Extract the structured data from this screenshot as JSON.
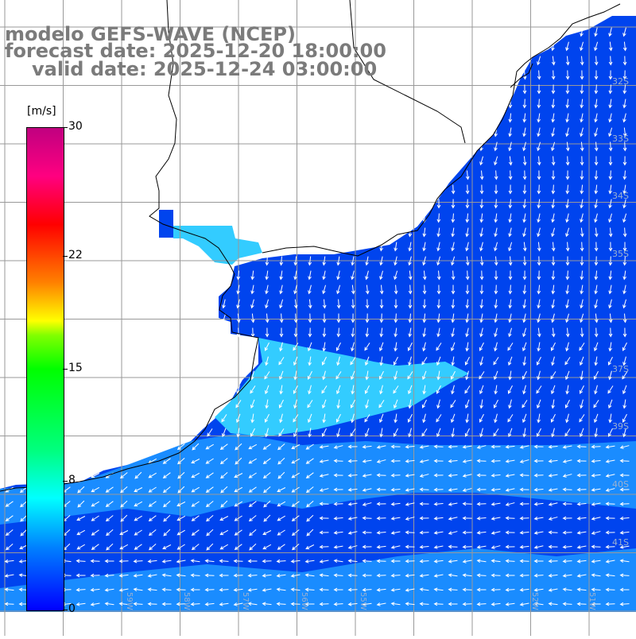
{
  "title": {
    "line1": "modelo GEFS-WAVE (NCEP)",
    "line2": "forecast date: 2025-12-20 18:00:00",
    "line3": "valid date: 2025-12-24 03:00:00"
  },
  "legend": {
    "unit": "[m/s]",
    "ticks": [
      "30",
      "22",
      "15",
      "8",
      "0"
    ],
    "tick_values": [
      30,
      22,
      15,
      8,
      0
    ],
    "max_value": 30,
    "colors": [
      "#0000ff",
      "#0080ff",
      "#00ffff",
      "#00ff80",
      "#00ff00",
      "#ffff00",
      "#ff8000",
      "#ff0000",
      "#c00080"
    ]
  },
  "map": {
    "lat_labels": [
      "32S",
      "33S",
      "34S",
      "35S",
      "37S",
      "39S",
      "40S",
      "41S"
    ],
    "lon_labels": [
      "59W",
      "58W",
      "57W",
      "56W",
      "55W",
      "52W",
      "51W"
    ],
    "colors": {
      "ocean_deep": "#0044ee",
      "ocean_mid": "#1a8cff",
      "ocean_light": "#33ccff",
      "coastline": "#000000",
      "grid": "#999999",
      "arrow": "#ffffff"
    }
  }
}
